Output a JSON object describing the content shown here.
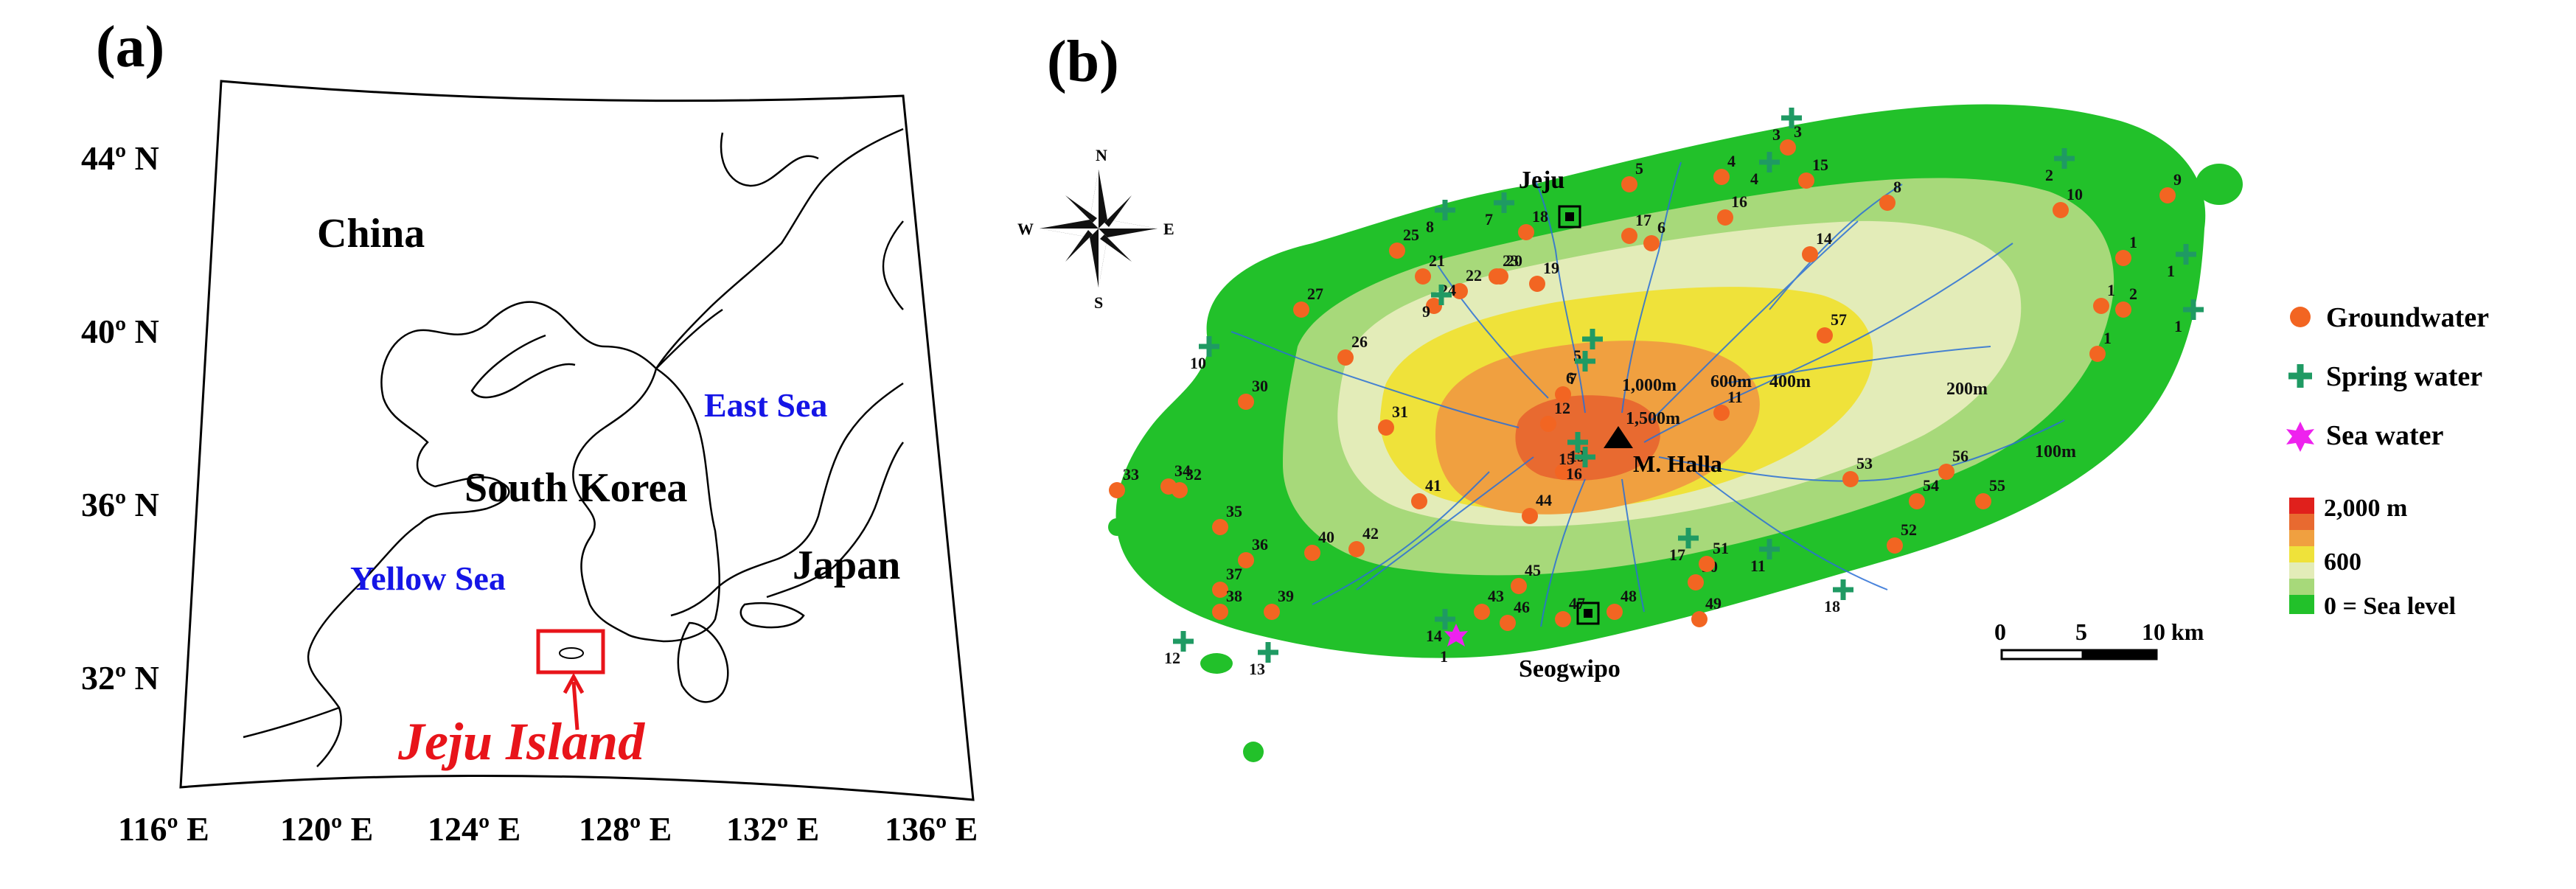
{
  "panel_a": {
    "label": "(a)",
    "lat_labels": [
      "44º N",
      "40º N",
      "36º N",
      "32º N"
    ],
    "lon_labels": [
      "116º E",
      "120º E",
      "124º E",
      "128º E",
      "132º E",
      "136º E"
    ],
    "places": {
      "china": "China",
      "south_korea": "South Korea",
      "japan": "Japan",
      "east_sea": "East Sea",
      "yellow_sea": "Yellow Sea",
      "jeju_island": "Jeju Island"
    },
    "colors": {
      "sea_label": "#1515e6",
      "highlight": "#e8141a",
      "land_line": "#000000"
    }
  },
  "panel_b": {
    "label": "(b)",
    "compass": {
      "n": "N",
      "s": "S",
      "e": "E",
      "w": "W"
    },
    "cities": {
      "jeju": "Jeju",
      "seogwipo": "Seogwipo",
      "peak": "M. Halla"
    },
    "contours": [
      "100m",
      "200m",
      "400m",
      "600m",
      "1,000m",
      "1,500m"
    ],
    "legend": {
      "groundwater": "Groundwater",
      "spring": "Spring water",
      "sea": "Sea water",
      "scale_top": "2,000 m",
      "scale_mid": "600",
      "scale_bottom": "0 = Sea level"
    },
    "scalebar": {
      "zero": "0",
      "five": "5",
      "ten": "10 km"
    },
    "colors": {
      "groundwater": "#f26522",
      "spring": "#1f9a63",
      "sea": "#ee22ee",
      "green": "#22c12a",
      "light_green": "#a7d97a",
      "pale": "#e3ecb8",
      "yellow": "#efe23a",
      "orange": "#f0a040",
      "red_orange": "#e86a30",
      "red": "#e0201c"
    },
    "groundwater_labels": [
      "1",
      "1",
      "1",
      "2",
      "3",
      "4",
      "5",
      "6",
      "7",
      "8",
      "9",
      "10",
      "11",
      "12",
      "13",
      "14",
      "15",
      "16",
      "17",
      "18",
      "19",
      "20",
      "21",
      "22",
      "23",
      "24",
      "25",
      "26",
      "27",
      "30",
      "31",
      "32",
      "33",
      "34",
      "35",
      "36",
      "37",
      "38",
      "39",
      "40",
      "41",
      "42",
      "43",
      "44",
      "45",
      "46",
      "47",
      "48",
      "49",
      "50",
      "51",
      "52",
      "53",
      "54",
      "55",
      "56",
      "57"
    ],
    "spring_labels": [
      "1",
      "1",
      "2",
      "3",
      "4",
      "5",
      "6",
      "7",
      "8",
      "9",
      "10",
      "11",
      "12",
      "13",
      "14",
      "15",
      "16",
      "17",
      "18"
    ],
    "sea_labels": [
      "1"
    ]
  }
}
